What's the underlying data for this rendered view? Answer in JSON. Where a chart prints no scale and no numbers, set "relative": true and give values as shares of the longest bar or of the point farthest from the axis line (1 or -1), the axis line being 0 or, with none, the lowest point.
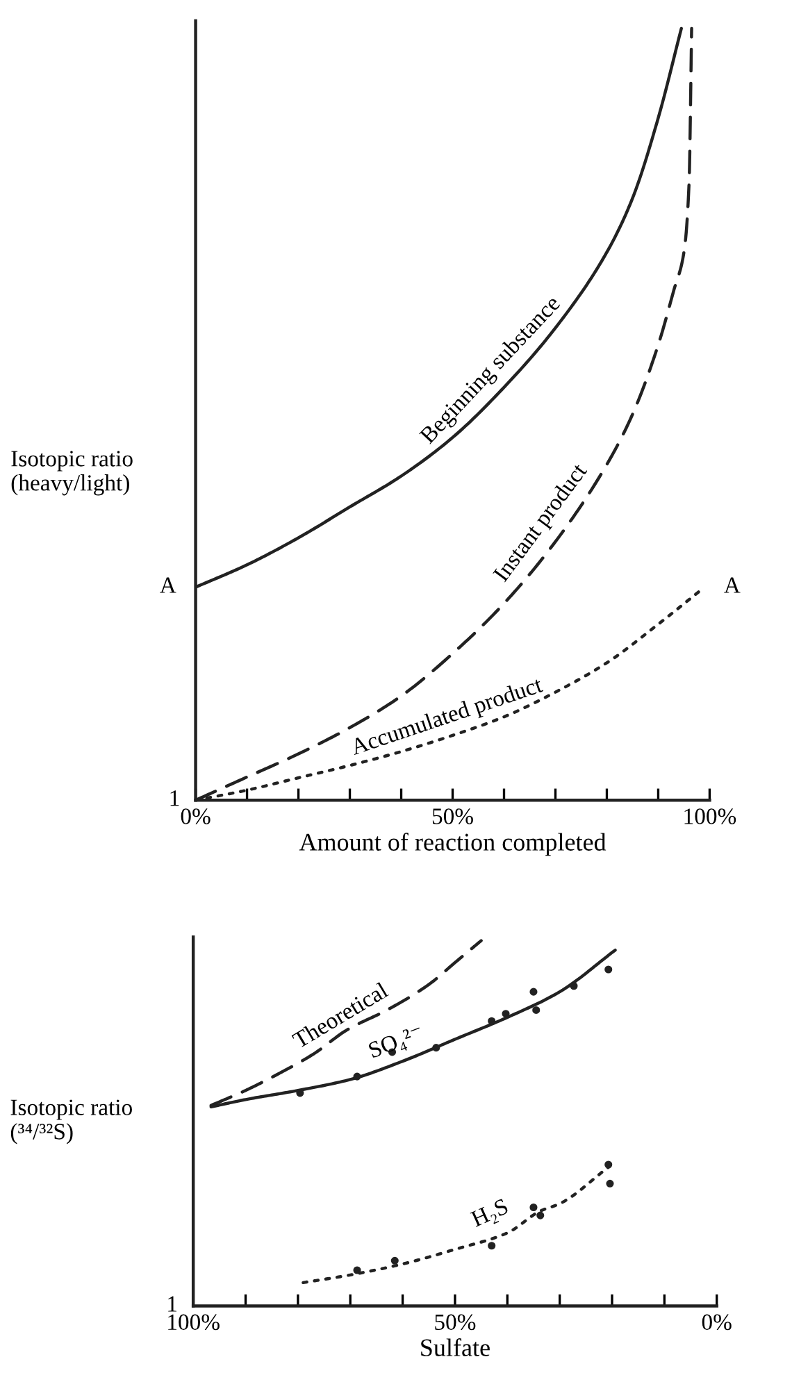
{
  "chart_data": [
    {
      "type": "line",
      "relative": true,
      "xlabel": "Amount of reaction completed",
      "ylabel": "Isotopic ratio\n(heavy/light)",
      "xlim": [
        0,
        100
      ],
      "xticks": [
        {
          "value": 0,
          "label": "0%"
        },
        {
          "value": 10,
          "label": null
        },
        {
          "value": 20,
          "label": null
        },
        {
          "value": 30,
          "label": null
        },
        {
          "value": 40,
          "label": null
        },
        {
          "value": 50,
          "label": "50%"
        },
        {
          "value": 60,
          "label": null
        },
        {
          "value": 70,
          "label": null
        },
        {
          "value": 80,
          "label": null
        },
        {
          "value": 90,
          "label": null
        },
        {
          "value": 100,
          "label": "100%"
        }
      ],
      "legend": false,
      "grid": false,
      "marker": "none",
      "series": [
        {
          "name": "Beginning substance",
          "color": "#222222",
          "line_style": "solid",
          "x": [
            0,
            10,
            20,
            30,
            40,
            50,
            60,
            70,
            80,
            85,
            90,
            94.5
          ],
          "values": [
            0.276,
            0.305,
            0.34,
            0.38,
            0.42,
            0.47,
            0.535,
            0.612,
            0.71,
            0.78,
            0.884,
            1.0
          ]
        },
        {
          "name": "Instant product",
          "color": "#222222",
          "line_style": "dashed",
          "x": [
            0,
            10,
            20,
            30,
            40,
            50,
            60,
            70,
            80,
            85,
            90,
            93,
            95,
            96,
            96.5
          ],
          "values": [
            0,
            0.03,
            0.06,
            0.094,
            0.135,
            0.19,
            0.255,
            0.335,
            0.435,
            0.5,
            0.59,
            0.66,
            0.71,
            0.8,
            1.0
          ]
        },
        {
          "name": "Accumulated product",
          "color": "#222222",
          "line_style": "dotted",
          "x": [
            0,
            10,
            20,
            30,
            40,
            50,
            60,
            70,
            80,
            90,
            99
          ],
          "values": [
            0,
            0.013,
            0.029,
            0.045,
            0.063,
            0.084,
            0.108,
            0.14,
            0.178,
            0.228,
            0.276
          ]
        }
      ],
      "annotations": [
        "1",
        {
          "text": "A",
          "x": 0,
          "y": 0.276
        },
        {
          "text": "A",
          "x": 99,
          "y": 0.276
        }
      ]
    },
    {
      "type": "line",
      "relative": true,
      "xlabel": "Sulfate",
      "ylabel": "Isotopic ratio\n(³⁴/³²S)",
      "xlim": [
        100,
        0
      ],
      "xticks": [
        {
          "value": 100,
          "label": "100%"
        },
        {
          "value": 90,
          "label": null
        },
        {
          "value": 80,
          "label": null
        },
        {
          "value": 70,
          "label": null
        },
        {
          "value": 60,
          "label": null
        },
        {
          "value": 50,
          "label": "50%"
        },
        {
          "value": 40,
          "label": null
        },
        {
          "value": 30,
          "label": null
        },
        {
          "value": 20,
          "label": null
        },
        {
          "value": 10,
          "label": null
        },
        {
          "value": 0,
          "label": "0%"
        }
      ],
      "legend": false,
      "grid": false,
      "series": [
        {
          "name": "Theoretical",
          "color": "#222222",
          "line_style": "dashed",
          "x": [
            96.6,
            90,
            83.8,
            77,
            70.6,
            63,
            55,
            50,
            45
          ],
          "values": [
            0.549,
            0.59,
            0.635,
            0.69,
            0.756,
            0.81,
            0.88,
            0.94,
            1.0
          ]
        },
        {
          "name": "SO₄²⁻",
          "color": "#222222",
          "line_style": "solid",
          "x": [
            96.6,
            90,
            80,
            70,
            60,
            50,
            40,
            30,
            19.4
          ],
          "values": [
            0.545,
            0.565,
            0.59,
            0.62,
            0.67,
            0.73,
            0.79,
            0.86,
            0.974
          ]
        },
        {
          "type": "scatter",
          "marker": "circle",
          "color": "#222222",
          "x": [
            79.6,
            68.7,
            62,
            53.6,
            43,
            40.3,
            35,
            34.5,
            27.3,
            20.7
          ],
          "values": [
            0.583,
            0.628,
            0.695,
            0.707,
            0.78,
            0.8,
            0.86,
            0.81,
            0.876,
            0.921
          ]
        },
        {
          "name": "H₂S",
          "color": "#222222",
          "line_style": "dotted",
          "x": [
            79,
            70,
            60,
            50,
            40,
            33.7,
            30,
            20.7
          ],
          "values": [
            0.064,
            0.085,
            0.115,
            0.155,
            0.2,
            0.26,
            0.28,
            0.38
          ]
        },
        {
          "type": "scatter",
          "marker": "circle",
          "color": "#222222",
          "x": [
            68.7,
            61.5,
            43,
            35,
            33.7,
            20.7,
            20.4
          ],
          "values": [
            0.098,
            0.124,
            0.165,
            0.27,
            0.248,
            0.387,
            0.335
          ]
        }
      ],
      "annotations": [
        "1"
      ]
    }
  ]
}
